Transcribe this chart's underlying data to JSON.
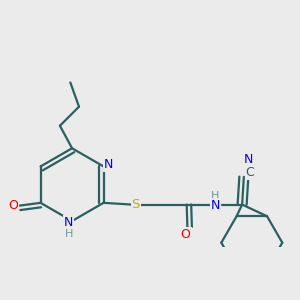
{
  "bg_color": "#ebebeb",
  "colors": {
    "bond": "#2a6060",
    "N": "#0000ee",
    "O": "#ee0000",
    "S": "#ccaa00",
    "H": "#6a9a9a",
    "C": "#2a6060"
  },
  "figsize": [
    3.0,
    3.0
  ],
  "dpi": 100
}
